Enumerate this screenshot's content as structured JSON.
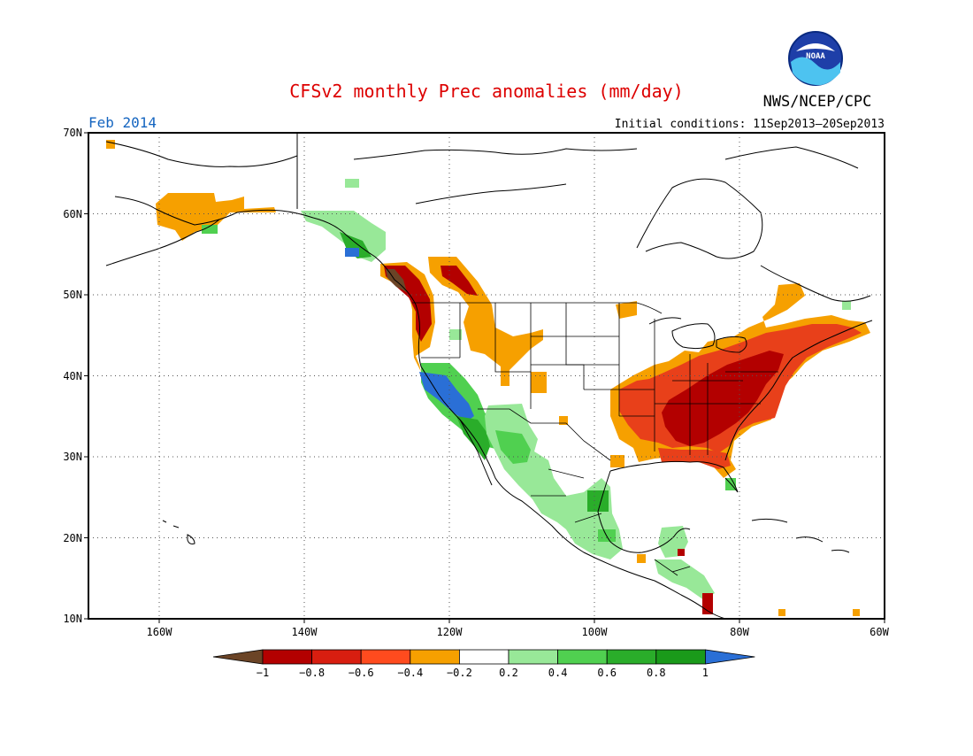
{
  "title": "CFSv2 monthly Prec anomalies (mm/day)",
  "valid_month": "Feb 2014",
  "initial_conditions": "Initial conditions: 11Sep2013–20Sep2013",
  "agency": "NWS/NCEP/CPC",
  "logo_text": "NOAA",
  "colors": {
    "title": "#dd0000",
    "month": "#1565c0",
    "dry_extreme": "#6b4426",
    "dry_strong": "#b30000",
    "dry_moderate": "#e8401a",
    "dry_weak": "#f6a000",
    "neutral": "#ffffff",
    "wet_weak": "#98e898",
    "wet_moderate": "#50d050",
    "wet_strong": "#2aad2a",
    "wet_heavy": "#1a9a1a",
    "wet_extreme": "#2a6fd6"
  },
  "lat_labels": [
    "70N",
    "60N",
    "50N",
    "40N",
    "30N",
    "20N",
    "10N"
  ],
  "lon_labels": [
    "160W",
    "140W",
    "120W",
    "100W",
    "80W",
    "60W"
  ],
  "colorbar": {
    "labels": [
      "−1",
      "−0.8",
      "−0.6",
      "−0.4",
      "−0.2",
      "0.2",
      "0.4",
      "0.6",
      "0.8",
      "1"
    ],
    "colors": [
      "#b30000",
      "#d81e10",
      "#ff4b1e",
      "#f6a000",
      "#ffffff",
      "#98e898",
      "#50d050",
      "#2aad2a",
      "#1a9a1a"
    ],
    "low_arrow_color": "#6b4426",
    "high_arrow_color": "#2a6fd6"
  }
}
